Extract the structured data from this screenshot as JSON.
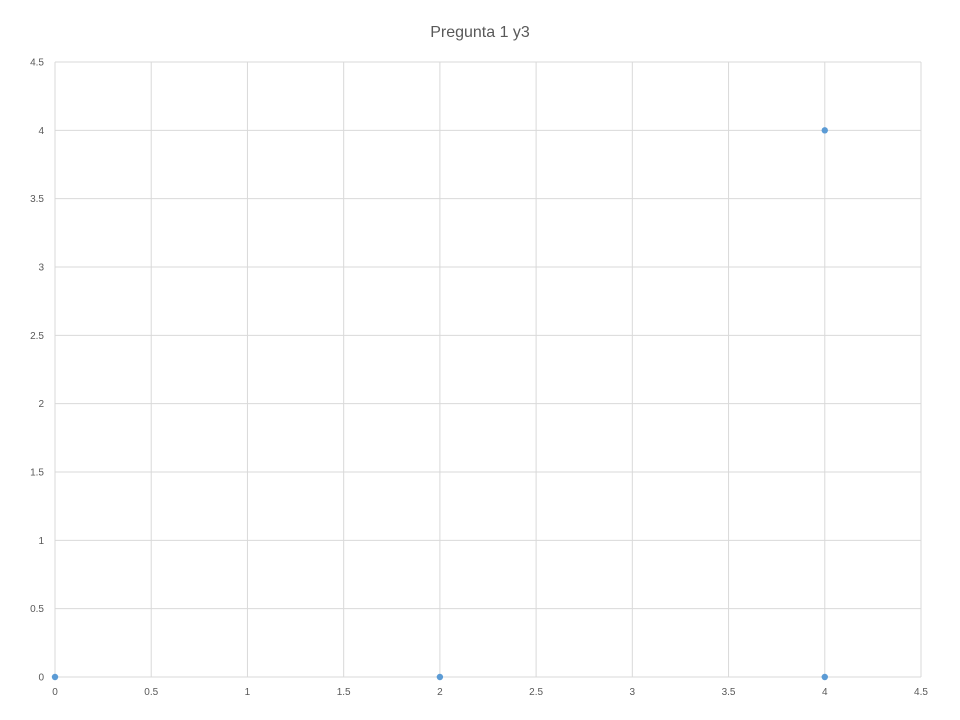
{
  "chart_data": {
    "type": "scatter",
    "title": "Pregunta 1 y3",
    "xlabel": "",
    "ylabel": "",
    "xlim": [
      0,
      4.5
    ],
    "ylim": [
      0,
      4.5
    ],
    "x_ticks": [
      "0",
      "0.5",
      "1",
      "1.5",
      "2",
      "2.5",
      "3",
      "3.5",
      "4",
      "4.5"
    ],
    "y_ticks": [
      "0",
      "0.5",
      "1",
      "1.5",
      "2",
      "2.5",
      "3",
      "3.5",
      "4",
      "4.5"
    ],
    "grid": true,
    "legend": "none",
    "series": [
      {
        "color": "#5b9bd5",
        "points": [
          {
            "x": 0,
            "y": 0
          },
          {
            "x": 2,
            "y": 0
          },
          {
            "x": 4,
            "y": 0
          },
          {
            "x": 4,
            "y": 4
          }
        ]
      }
    ],
    "colors": {
      "grid": "#d9d9d9",
      "axis_text": "#595959",
      "point": "#5b9bd5"
    }
  }
}
